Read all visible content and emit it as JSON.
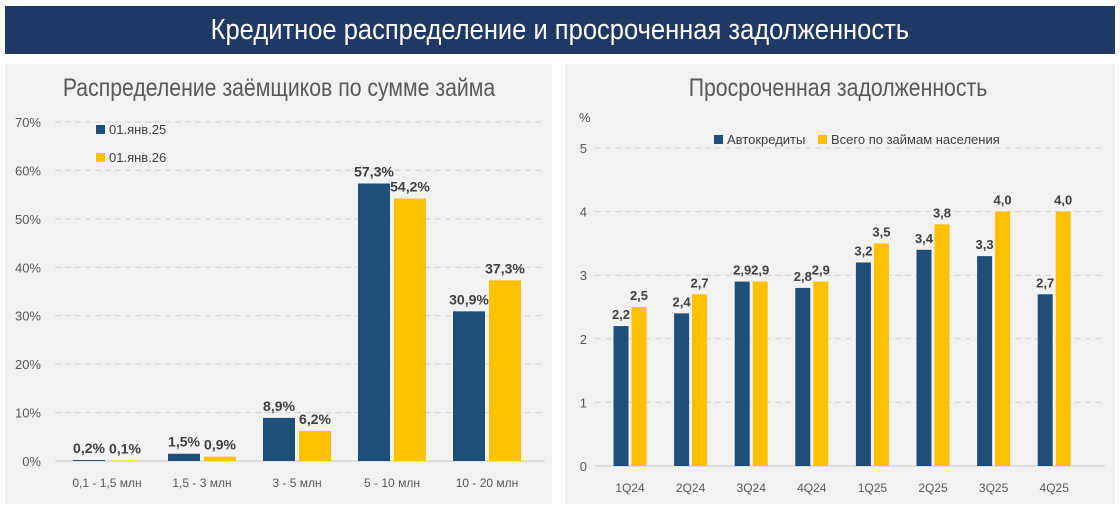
{
  "header": {
    "title": "Кредитное распределение и просроченная задолженность"
  },
  "colors": {
    "navy": "#1f4e79",
    "yellow": "#ffc000",
    "header_bg": "#1f3864"
  },
  "chart_data": [
    {
      "type": "bar",
      "title": "Распределение заёмщиков по сумме займа",
      "categories": [
        "0,1 - 1,5 млн",
        "1,5 - 3 млн",
        "3 - 5 млн",
        "5 - 10 млн",
        "10 - 20 млн"
      ],
      "series": [
        {
          "name": "01.янв.25",
          "values": [
            0.2,
            1.5,
            8.9,
            57.3,
            30.9
          ],
          "labels": [
            "0,2%",
            "1,5%",
            "8,9%",
            "57,3%",
            "30,9%"
          ]
        },
        {
          "name": "01.янв.26",
          "values": [
            0.1,
            0.9,
            6.2,
            54.2,
            37.3
          ],
          "labels": [
            "0,1%",
            "0,9%",
            "6,2%",
            "54,2%",
            "37,3%"
          ]
        }
      ],
      "ylim": [
        0,
        70
      ],
      "yticks": [
        "0%",
        "10%",
        "20%",
        "30%",
        "40%",
        "50%",
        "60%",
        "70%"
      ],
      "ylabel": "",
      "grid": true,
      "legend": "top-left"
    },
    {
      "type": "bar",
      "title": "Просроченная задолженность",
      "categories": [
        "1Q24",
        "2Q24",
        "3Q24",
        "4Q24",
        "1Q25",
        "2Q25",
        "3Q25",
        "4Q25"
      ],
      "series": [
        {
          "name": "Автокредиты",
          "values": [
            2.2,
            2.4,
            2.9,
            2.8,
            3.2,
            3.4,
            3.3,
            2.7
          ],
          "labels": [
            "2,2",
            "2,4",
            "2,9",
            "2,8",
            "3,2",
            "3,4",
            "3,3",
            "2,7"
          ]
        },
        {
          "name": "Всего по займам населения",
          "values": [
            2.5,
            2.7,
            2.9,
            2.9,
            3.5,
            3.8,
            4.0,
            4.0
          ],
          "labels": [
            "2,5",
            "2,7",
            "2,9",
            "2,9",
            "3,5",
            "3,8",
            "4,0",
            "4,0"
          ]
        }
      ],
      "ylim": [
        0,
        5
      ],
      "yticks": [
        "0",
        "1",
        "2",
        "3",
        "4",
        "5"
      ],
      "ylabel": "%",
      "grid": true,
      "legend": "top"
    }
  ]
}
